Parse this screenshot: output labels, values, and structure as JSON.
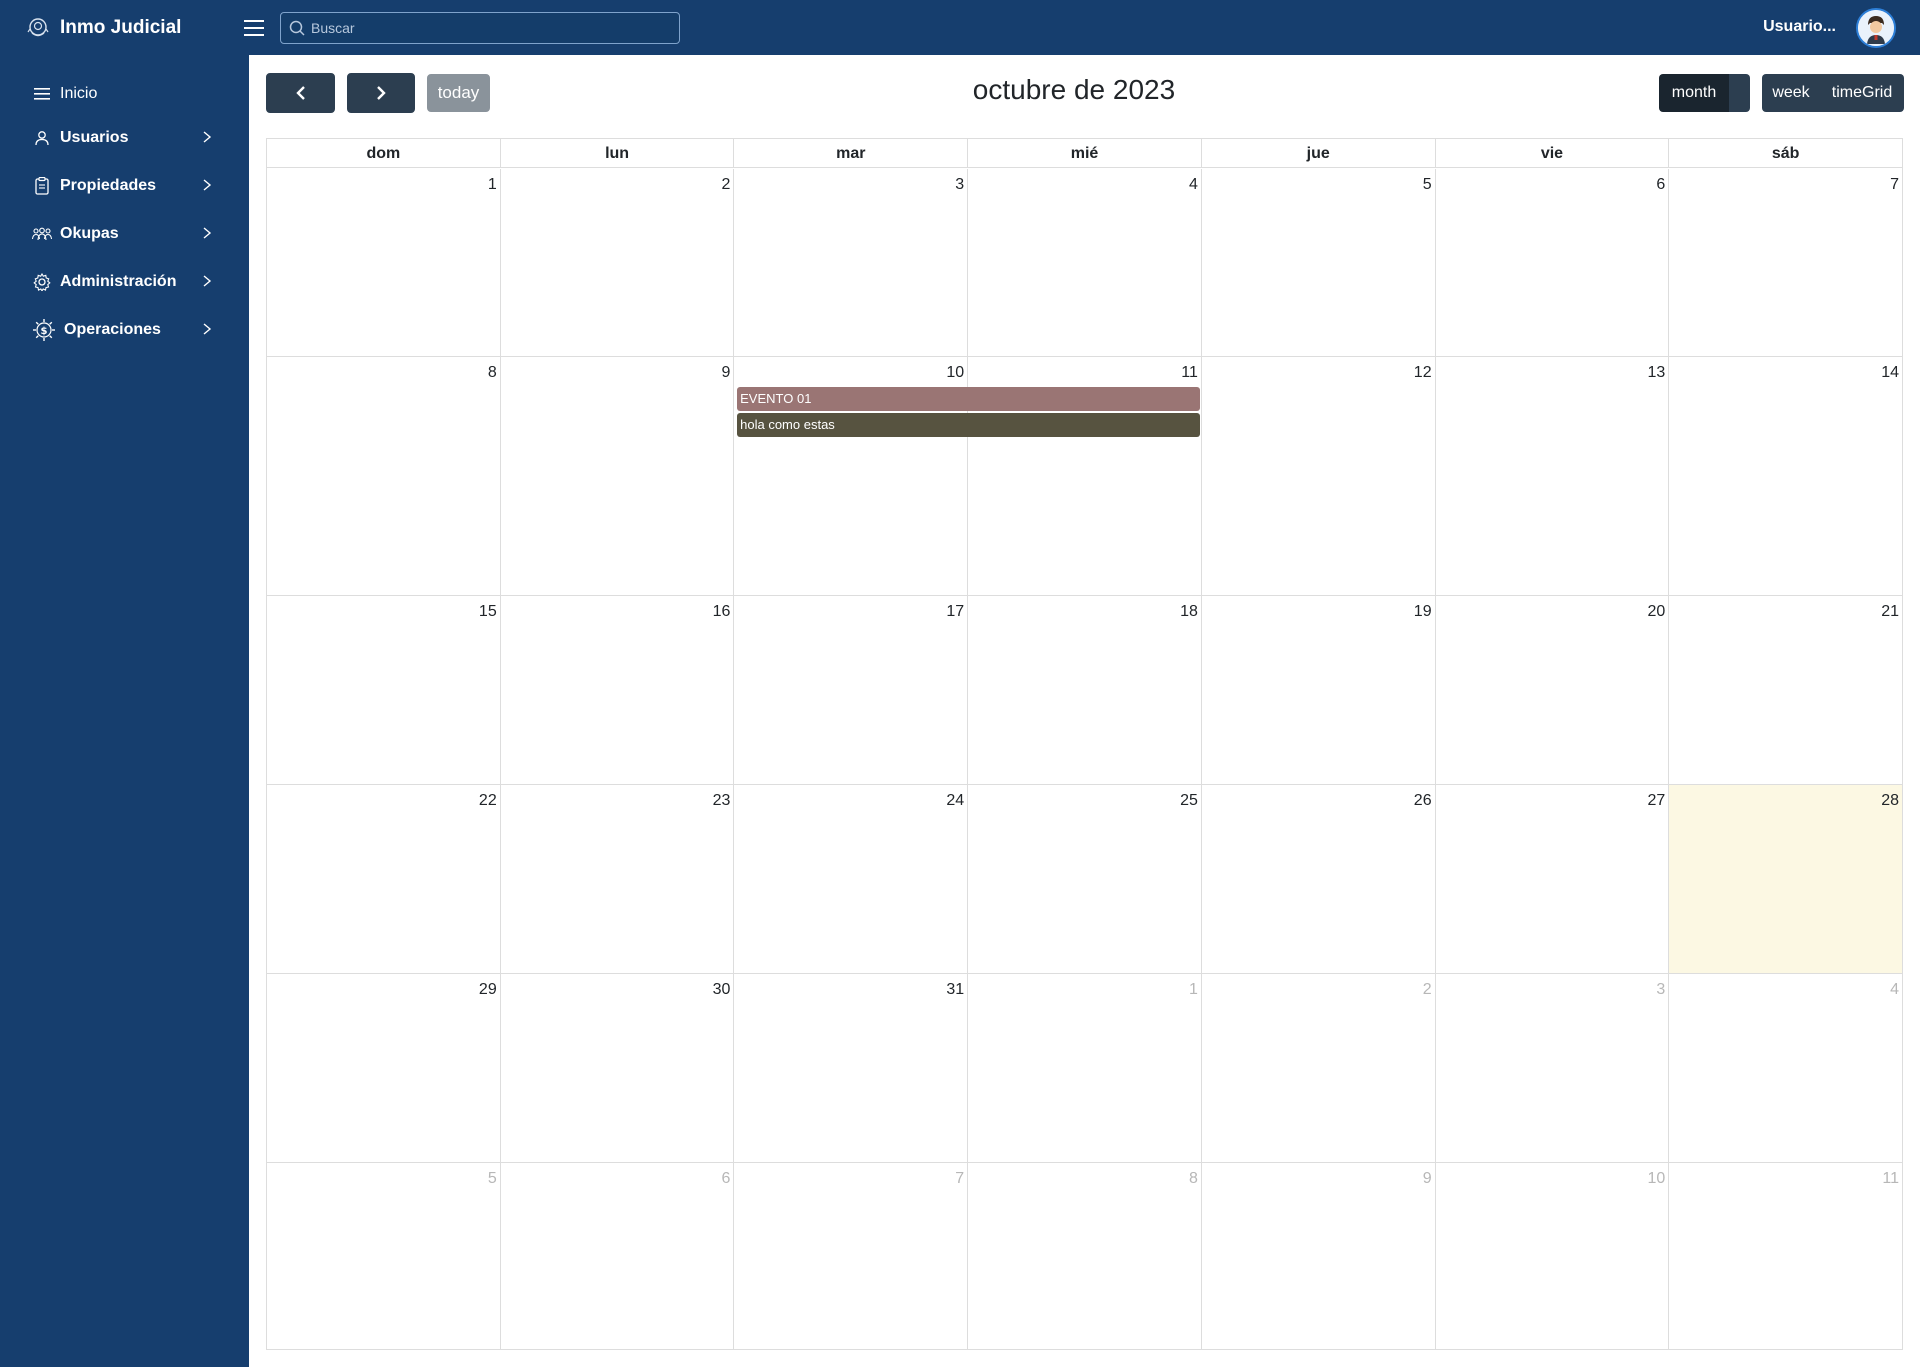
{
  "app": {
    "title": "Inmo Judicial"
  },
  "search": {
    "placeholder": "Buscar"
  },
  "user": {
    "name": "Usuario..."
  },
  "sidebar": {
    "items": [
      {
        "label": "Inicio",
        "icon": "list-icon",
        "has_children": false
      },
      {
        "label": "Usuarios",
        "icon": "user-icon",
        "has_children": true
      },
      {
        "label": "Propiedades",
        "icon": "clipboard-icon",
        "has_children": true
      },
      {
        "label": "Okupas",
        "icon": "people-icon",
        "has_children": true
      },
      {
        "label": "Administración",
        "icon": "gear-icon",
        "has_children": true
      },
      {
        "label": "Operaciones",
        "icon": "gear-dollar-icon",
        "has_children": true
      }
    ]
  },
  "calendar": {
    "title": "octubre de 2023",
    "today_label": "today",
    "views": {
      "month": "month",
      "week": "week",
      "timegrid": "timeGrid"
    },
    "active_view": "month",
    "weekdays": [
      "dom",
      "lun",
      "mar",
      "mié",
      "jue",
      "vie",
      "sáb"
    ],
    "weeks": [
      [
        {
          "n": "1"
        },
        {
          "n": "2"
        },
        {
          "n": "3"
        },
        {
          "n": "4"
        },
        {
          "n": "5"
        },
        {
          "n": "6"
        },
        {
          "n": "7"
        }
      ],
      [
        {
          "n": "8"
        },
        {
          "n": "9"
        },
        {
          "n": "10"
        },
        {
          "n": "11"
        },
        {
          "n": "12"
        },
        {
          "n": "13"
        },
        {
          "n": "14"
        }
      ],
      [
        {
          "n": "15"
        },
        {
          "n": "16"
        },
        {
          "n": "17"
        },
        {
          "n": "18"
        },
        {
          "n": "19"
        },
        {
          "n": "20"
        },
        {
          "n": "21"
        }
      ],
      [
        {
          "n": "22"
        },
        {
          "n": "23"
        },
        {
          "n": "24"
        },
        {
          "n": "25"
        },
        {
          "n": "26"
        },
        {
          "n": "27"
        },
        {
          "n": "28",
          "today": true
        }
      ],
      [
        {
          "n": "29"
        },
        {
          "n": "30"
        },
        {
          "n": "31"
        },
        {
          "n": "1",
          "other": true
        },
        {
          "n": "2",
          "other": true
        },
        {
          "n": "3",
          "other": true
        },
        {
          "n": "4",
          "other": true
        }
      ],
      [
        {
          "n": "5",
          "other": true
        },
        {
          "n": "6",
          "other": true
        },
        {
          "n": "7",
          "other": true
        },
        {
          "n": "8",
          "other": true
        },
        {
          "n": "9",
          "other": true
        },
        {
          "n": "10",
          "other": true
        },
        {
          "n": "11",
          "other": true
        }
      ]
    ],
    "events": [
      {
        "title": "EVENTO 01",
        "start_day": 10,
        "end_day": 11,
        "color": "#9a7574"
      },
      {
        "title": "hola como estas",
        "start_day": 10,
        "end_day": 11,
        "color": "#575340"
      }
    ],
    "colors": {
      "today_bg": "#fcf8e3",
      "toolbar_btn": "#2c3e50",
      "brand_bg": "#163e6e"
    }
  }
}
